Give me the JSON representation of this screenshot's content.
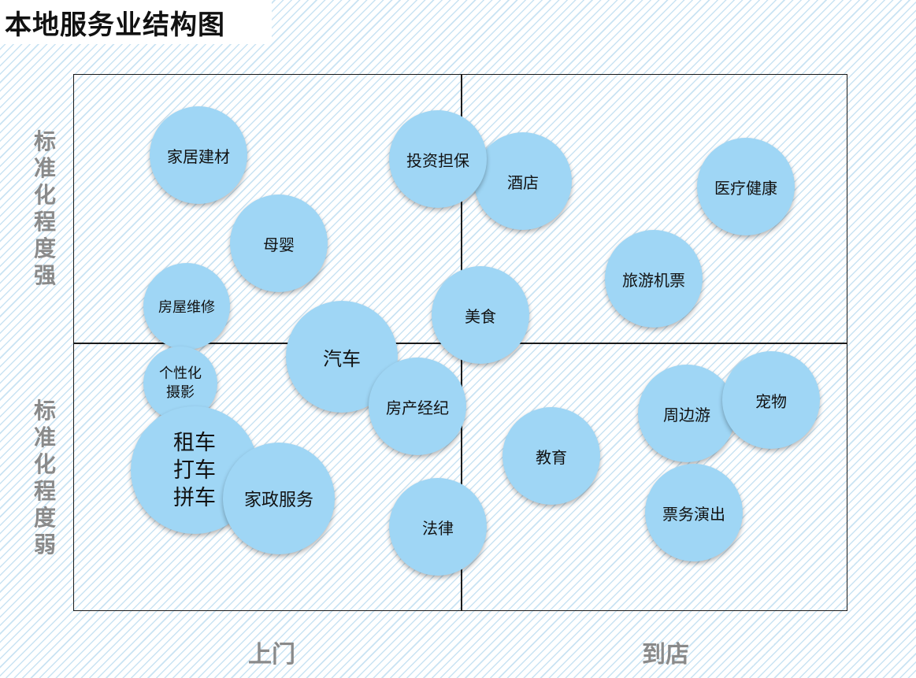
{
  "title": "本地服务业结构图",
  "y_axis": {
    "top_label": [
      "标",
      "准",
      "化",
      "程",
      "度",
      "强"
    ],
    "bottom_label": [
      "标",
      "准",
      "化",
      "程",
      "度",
      "弱"
    ]
  },
  "x_axis": {
    "left_label": "上门",
    "right_label": "到店"
  },
  "bubbles": {
    "jiaju": "家居建材",
    "touzi": "投资担保",
    "jiudian": "酒店",
    "yiliao": "医疗健康",
    "muying": "母婴",
    "lvyou": "旅游机票",
    "fangwu": "房屋维修",
    "meishi": "美食",
    "qiche": "汽车",
    "sheying": "个性化\n摄影",
    "fangchan": "房产经纪",
    "zhoubian": "周边游",
    "chongwu": "宠物",
    "jiaoyu": "教育",
    "zuche": "租车\n打车\n拼车",
    "jiazheng": "家政服务",
    "falv": "法律",
    "piaowu": "票务演出"
  }
}
